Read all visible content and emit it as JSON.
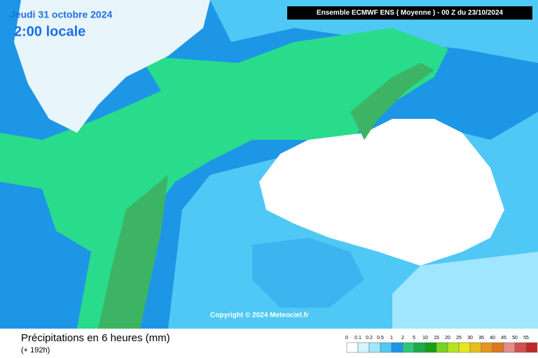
{
  "header": {
    "date": "Jeudi 31 octobre 2024",
    "time": "2:00 locale",
    "model": "Ensemble ECMWF ENS  ( Moyenne )  -  00 Z du 23/10/2024"
  },
  "copyright": "Copyright © 2024 Meteociel.fr",
  "footer": {
    "title": "Précipitations en 6 heures (mm)",
    "subtitle": "(+ 192h)"
  },
  "legend": {
    "items": [
      {
        "label": "0",
        "color": "#ffffff"
      },
      {
        "label": "0.1",
        "color": "#d2f5ff"
      },
      {
        "label": "0.2",
        "color": "#a0e6ff"
      },
      {
        "label": "0.5",
        "color": "#50c8f5"
      },
      {
        "label": "1",
        "color": "#1e96e6"
      },
      {
        "label": "2",
        "color": "#28c878"
      },
      {
        "label": "5",
        "color": "#1eaa46"
      },
      {
        "label": "10",
        "color": "#14a014"
      },
      {
        "label": "15",
        "color": "#78d21e"
      },
      {
        "label": "20",
        "color": "#b4e61e"
      },
      {
        "label": "25",
        "color": "#e6e61e"
      },
      {
        "label": "30",
        "color": "#e6be1e"
      },
      {
        "label": "35",
        "color": "#e6961e"
      },
      {
        "label": "40",
        "color": "#dc781e"
      },
      {
        "label": "45",
        "color": "#e68c8c"
      },
      {
        "label": "50",
        "color": "#d25050"
      },
      {
        "label": "55",
        "color": "#be2828"
      }
    ]
  }
}
